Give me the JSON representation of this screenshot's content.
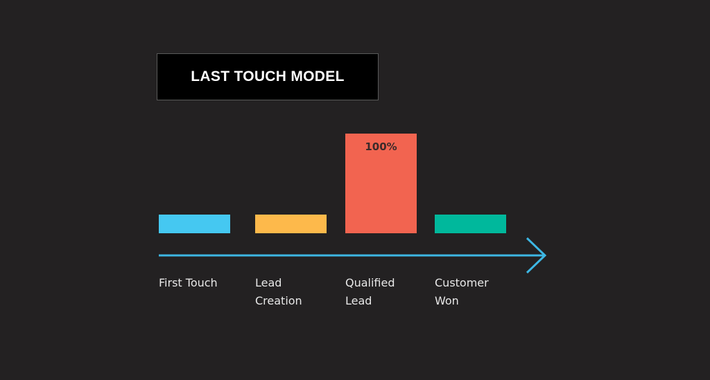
{
  "chart_data": {
    "type": "bar",
    "title": "LAST TOUCH MODEL",
    "categories": [
      "First Touch",
      "Lead\nCreation",
      "Qualified\nLead",
      "Customer\nWon"
    ],
    "colors": [
      "#45c8f1",
      "#fdb94b",
      "#f26450",
      "#00b89c"
    ],
    "values": [
      0,
      0,
      100,
      0
    ],
    "data_labels": [
      "",
      "",
      "100%",
      ""
    ],
    "unit": "%",
    "ylim": [
      0,
      100
    ],
    "axis_color": "#3db7e4",
    "axis_arrow": "right",
    "grid": false,
    "legend": "none"
  }
}
